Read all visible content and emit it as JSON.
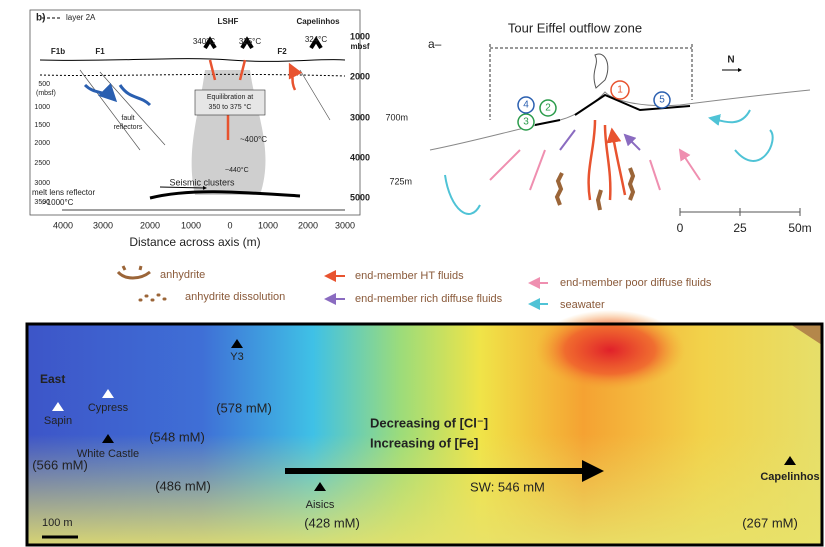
{
  "panel_b": {
    "label": "b)",
    "legend_line": "layer 2A",
    "sites": [
      "LSHF",
      "Capelinhos"
    ],
    "faults": [
      "F1b",
      "F1",
      "F2"
    ],
    "temperatures": [
      "340°C",
      "325°C",
      "324°C"
    ],
    "right_axis": {
      "ticks": [
        "1000",
        "2000",
        "3000",
        "4000",
        "5000"
      ],
      "unit": "mbsf"
    },
    "left_axis": {
      "ticks": [
        "500",
        "1000",
        "1500",
        "2000",
        "2500",
        "3000",
        "3500"
      ],
      "unit": "(mbsf)"
    },
    "annotations": {
      "equilibration": "Equilibration at",
      "equilibration_range": "350 to 375 °C",
      "fault_reflectors": "fault",
      "fault_reflectors_2": "reflectors",
      "t400": "~400°C",
      "t440": "~440°C",
      "seismic": "Seismic clusters",
      "melt_lens": "melt lens reflector",
      "melt_temp": ">1000°C"
    },
    "x_axis": {
      "ticks": [
        "4000",
        "3000",
        "2000",
        "1000",
        "0",
        "1000",
        "2000",
        "3000"
      ],
      "title": "Distance across axis (m)"
    }
  },
  "panel_a": {
    "label": "a–",
    "title": "Tour Eiffel outflow zone",
    "north": "N",
    "depths": [
      "700m",
      "725m"
    ],
    "sites": [
      "1",
      "2",
      "3",
      "4",
      "5"
    ],
    "scale": [
      "0",
      "25",
      "50m"
    ]
  },
  "legend": {
    "items": [
      "anhydrite",
      "anhydrite dissolution",
      "end-member HT fluids",
      "end-member rich diffuse fluids",
      "end-member poor diffuse fluids",
      "seawater"
    ]
  },
  "map": {
    "region": "East",
    "sites": [
      "Sapin",
      "Cypress",
      "Y3",
      "White Castle",
      "Aisics",
      "Capelinhos"
    ],
    "concentrations": [
      "(578 mM)",
      "(548 mM)",
      "(566 mM)",
      "(486 mM)",
      "(428 mM)",
      "(267 mM)"
    ],
    "trend": [
      "Decreasing of [Cl⁻]",
      "Increasing of [Fe]"
    ],
    "seawater": "SW: 546 mM",
    "scale": "100 m"
  }
}
